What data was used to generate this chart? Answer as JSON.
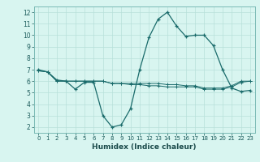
{
  "line1_x": [
    0,
    1,
    2,
    3,
    4,
    5,
    6,
    7,
    8,
    9,
    10,
    11,
    12,
    13,
    14,
    15,
    16,
    17,
    18,
    19,
    20,
    21,
    22,
    23
  ],
  "line1_y": [
    7.0,
    6.8,
    6.1,
    6.0,
    5.3,
    5.9,
    5.9,
    3.0,
    2.0,
    2.2,
    3.6,
    7.0,
    9.8,
    11.4,
    12.0,
    10.8,
    9.9,
    10.0,
    10.0,
    9.1,
    7.0,
    5.4,
    5.1,
    5.2
  ],
  "line2_x": [
    0,
    1,
    2,
    3,
    4,
    5,
    6,
    7,
    8,
    9,
    10,
    11,
    12,
    13,
    14,
    15,
    16,
    17,
    18,
    19,
    20,
    21,
    22,
    23
  ],
  "line2_y": [
    6.9,
    6.8,
    6.0,
    6.0,
    6.0,
    6.0,
    6.0,
    6.0,
    5.8,
    5.8,
    5.8,
    5.8,
    5.8,
    5.8,
    5.7,
    5.7,
    5.6,
    5.6,
    5.4,
    5.4,
    5.4,
    5.6,
    6.0,
    6.0
  ],
  "line3_x": [
    0,
    1,
    2,
    3,
    4,
    5,
    6,
    7,
    8,
    9,
    10,
    11,
    12,
    13,
    14,
    15,
    16,
    17,
    18,
    19,
    20,
    21,
    22,
    23
  ],
  "line3_y": [
    6.9,
    6.8,
    6.0,
    6.0,
    6.0,
    6.0,
    6.0,
    6.0,
    5.8,
    5.8,
    5.7,
    5.7,
    5.6,
    5.6,
    5.5,
    5.5,
    5.5,
    5.5,
    5.3,
    5.3,
    5.3,
    5.5,
    5.9,
    6.0
  ],
  "line_color": "#1a6b6b",
  "bg_color": "#d8f5f0",
  "grid_color": "#b8e0da",
  "xlabel": "Humidex (Indice chaleur)",
  "ylim": [
    1.5,
    12.5
  ],
  "xlim": [
    -0.5,
    23.5
  ],
  "yticks": [
    2,
    3,
    4,
    5,
    6,
    7,
    8,
    9,
    10,
    11,
    12
  ],
  "xticks": [
    0,
    1,
    2,
    3,
    4,
    5,
    6,
    7,
    8,
    9,
    10,
    11,
    12,
    13,
    14,
    15,
    16,
    17,
    18,
    19,
    20,
    21,
    22,
    23
  ],
  "xtick_labels": [
    "0",
    "1",
    "2",
    "3",
    "4",
    "5",
    "6",
    "7",
    "8",
    "9",
    "10",
    "11",
    "12",
    "13",
    "14",
    "15",
    "16",
    "17",
    "18",
    "19",
    "20",
    "21",
    "22",
    "23"
  ]
}
